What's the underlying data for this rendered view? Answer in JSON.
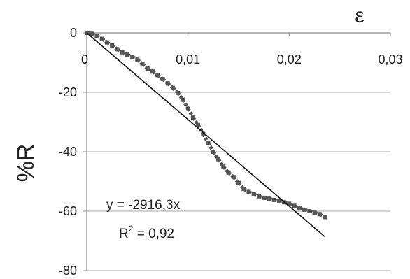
{
  "chart_data": {
    "type": "scatter",
    "title": "",
    "xlabel": "ε",
    "ylabel": "%R",
    "xlim": [
      0,
      0.03
    ],
    "ylim": [
      -80,
      0
    ],
    "x_ticks": [
      0,
      0.01,
      0.02,
      0.03
    ],
    "x_tick_labels": [
      "0",
      "0,01",
      "0,02",
      "0,03"
    ],
    "y_ticks": [
      0,
      -20,
      -40,
      -60,
      -80
    ],
    "y_tick_labels": [
      "0",
      "-20",
      "-40",
      "-60",
      "-80"
    ],
    "grid": "horizontal",
    "x_axis_position": "top (at y = 0)",
    "colors": {
      "points": "#555555",
      "trendline": "#111111",
      "grid": "#aaaaaa"
    },
    "series": [
      {
        "x": [
          0.0,
          0.0005,
          0.001,
          0.0015,
          0.002,
          0.0025,
          0.003,
          0.0035,
          0.004,
          0.0045,
          0.005,
          0.0055,
          0.006,
          0.0065,
          0.007,
          0.0075,
          0.008,
          0.0085,
          0.009,
          0.0095,
          0.01,
          0.0105,
          0.011,
          0.0115,
          0.012,
          0.0125,
          0.013,
          0.0135,
          0.014,
          0.0145,
          0.015,
          0.0155,
          0.016,
          0.0165,
          0.017,
          0.0175,
          0.018,
          0.0185,
          0.019,
          0.0195,
          0.02,
          0.0205,
          0.021,
          0.0215,
          0.022,
          0.0225,
          0.023,
          0.0235
        ],
        "y": [
          0.0,
          -0.3,
          -1.0,
          -2.0,
          -3.2,
          -4.2,
          -5.5,
          -6.5,
          -7.3,
          -8.0,
          -9.0,
          -10.5,
          -12.0,
          -13.0,
          -14.2,
          -15.5,
          -17.0,
          -18.5,
          -20.2,
          -22.5,
          -25.5,
          -28.5,
          -31.0,
          -34.0,
          -37.0,
          -40.0,
          -42.5,
          -45.0,
          -47.0,
          -48.5,
          -50.5,
          -52.5,
          -53.5,
          -54.3,
          -55.0,
          -55.5,
          -55.8,
          -56.2,
          -56.6,
          -57.0,
          -57.5,
          -58.2,
          -58.8,
          -59.5,
          -60.0,
          -60.5,
          -61.0,
          -62.0
        ]
      }
    ],
    "trendline": {
      "slope": -2916.3,
      "intercept": 0,
      "x_range": [
        0,
        0.0235
      ],
      "equation_label": "y = -2916,3x",
      "r2_label_prefix": "R",
      "r2_label_sup": "2",
      "r2_label_suffix": " = 0,92"
    }
  }
}
